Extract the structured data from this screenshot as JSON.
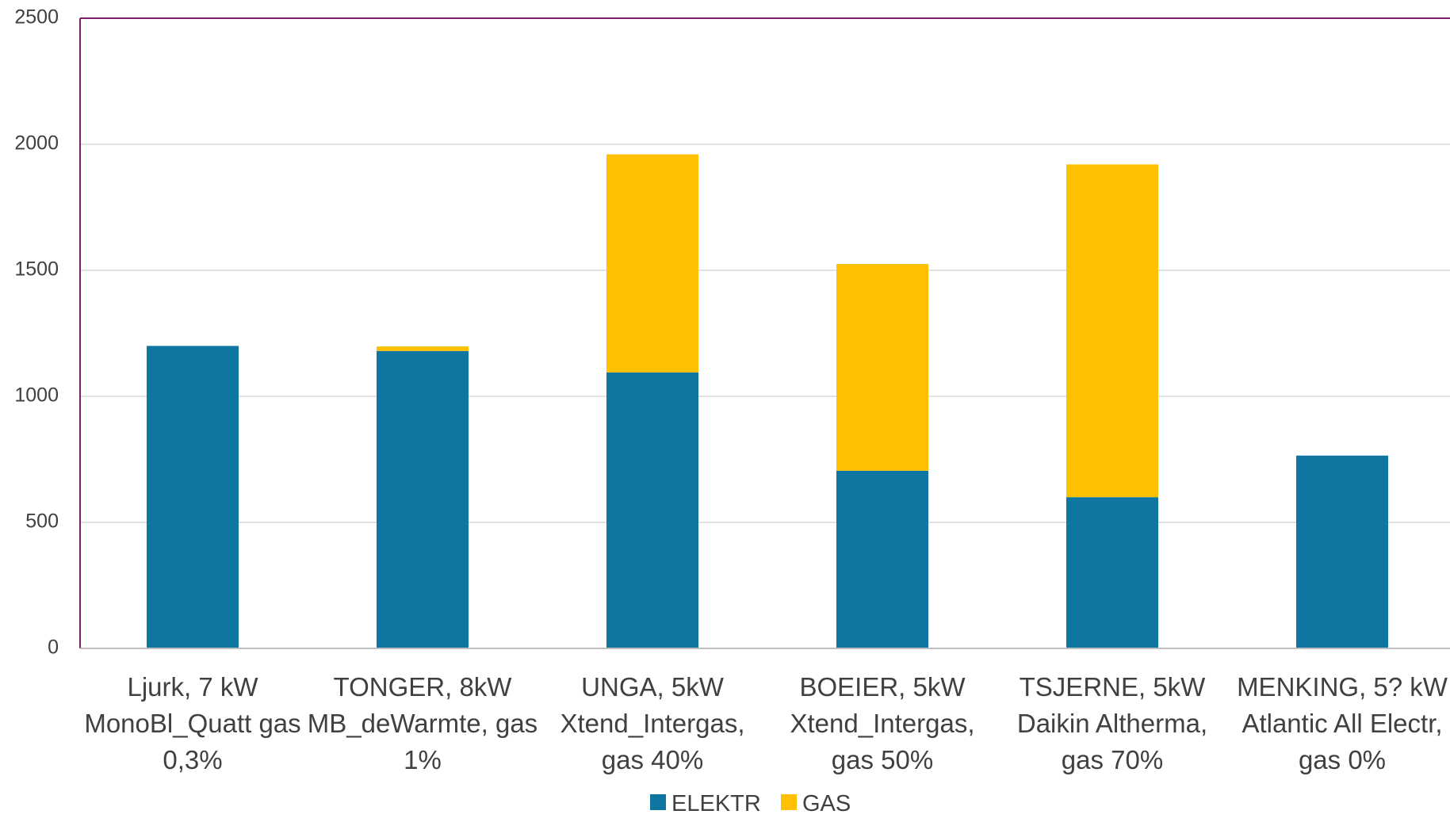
{
  "chart_data": {
    "type": "bar",
    "stacked": true,
    "categories": [
      [
        "Ljurk, 7 kW",
        "MonoBl_Quatt gas",
        "0,3%"
      ],
      [
        "TONGER, 8kW",
        "MB_deWarmte, gas",
        "1%"
      ],
      [
        "UNGA, 5kW",
        "Xtend_Intergas,",
        "gas 40%"
      ],
      [
        "BOEIER, 5kW",
        "Xtend_Intergas,",
        "gas 50%"
      ],
      [
        "TSJERNE, 5kW",
        "Daikin Altherma,",
        "gas 70%"
      ],
      [
        "MENKING, 5? kW",
        "Atlantic All Electr,",
        "gas 0%"
      ]
    ],
    "series": [
      {
        "name": "ELEKTR",
        "color": "#0E76A0",
        "values": [
          1200,
          1180,
          1095,
          705,
          600,
          765
        ]
      },
      {
        "name": "GAS",
        "color": "#FFC000",
        "values": [
          0,
          18,
          865,
          820,
          1320,
          0
        ]
      }
    ],
    "ylim": [
      0,
      2500
    ],
    "yticks": [
      0,
      500,
      1000,
      1500,
      2000,
      2500
    ],
    "grid": true,
    "legend": "bottom",
    "axis_color": "#7B1F6E",
    "grid_color": "#D9D9D9"
  }
}
